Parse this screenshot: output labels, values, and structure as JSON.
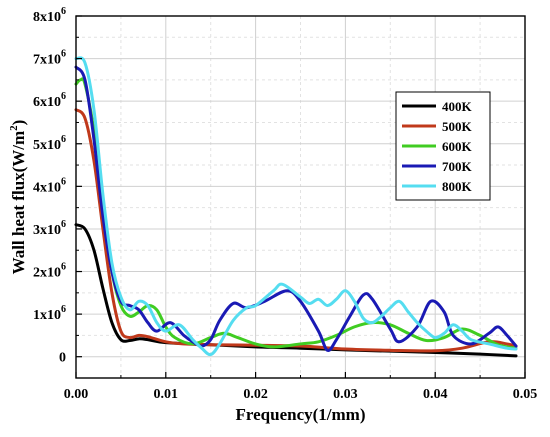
{
  "chart_data": {
    "type": "line",
    "title": "",
    "xlabel": "Frequency(1/mm)",
    "ylabel_prefix": "Wall heat flux(W/m",
    "ylabel_sup": "2",
    "ylabel_suffix": ")",
    "xlim": [
      0,
      0.05
    ],
    "ylim": [
      -500000,
      8000000
    ],
    "grid": true,
    "legend_position": "right",
    "x_ticks": [
      {
        "value": 0,
        "label": "0.00"
      },
      {
        "value": 0.01,
        "label": "0.01"
      },
      {
        "value": 0.02,
        "label": "0.02"
      },
      {
        "value": 0.03,
        "label": "0.03"
      },
      {
        "value": 0.04,
        "label": "0.04"
      },
      {
        "value": 0.05,
        "label": "0.05"
      }
    ],
    "y_ticks": [
      {
        "value": 0,
        "base": "0",
        "exp": ""
      },
      {
        "value": 1000000,
        "base": "1x10",
        "exp": "6"
      },
      {
        "value": 2000000,
        "base": "2x10",
        "exp": "6"
      },
      {
        "value": 3000000,
        "base": "3x10",
        "exp": "6"
      },
      {
        "value": 4000000,
        "base": "4x10",
        "exp": "6"
      },
      {
        "value": 5000000,
        "base": "5x10",
        "exp": "6"
      },
      {
        "value": 6000000,
        "base": "6x10",
        "exp": "6"
      },
      {
        "value": 7000000,
        "base": "7x10",
        "exp": "6"
      },
      {
        "value": 8000000,
        "base": "8x10",
        "exp": "6"
      }
    ],
    "series": [
      {
        "name": "400K",
        "color": "#000000",
        "points": [
          [
            0,
            3100000
          ],
          [
            0.001,
            3000000
          ],
          [
            0.002,
            2500000
          ],
          [
            0.003,
            1600000
          ],
          [
            0.004,
            800000
          ],
          [
            0.005,
            400000
          ],
          [
            0.006,
            380000
          ],
          [
            0.007,
            420000
          ],
          [
            0.008,
            400000
          ],
          [
            0.01,
            330000
          ],
          [
            0.015,
            280000
          ],
          [
            0.02,
            230000
          ],
          [
            0.025,
            200000
          ],
          [
            0.03,
            160000
          ],
          [
            0.035,
            130000
          ],
          [
            0.04,
            100000
          ],
          [
            0.045,
            60000
          ],
          [
            0.049,
            20000
          ]
        ]
      },
      {
        "name": "500K",
        "color": "#c0391b",
        "points": [
          [
            0,
            5800000
          ],
          [
            0.001,
            5600000
          ],
          [
            0.002,
            4600000
          ],
          [
            0.003,
            3000000
          ],
          [
            0.004,
            1500000
          ],
          [
            0.005,
            600000
          ],
          [
            0.006,
            450000
          ],
          [
            0.007,
            500000
          ],
          [
            0.008,
            470000
          ],
          [
            0.01,
            350000
          ],
          [
            0.012,
            300000
          ],
          [
            0.015,
            280000
          ],
          [
            0.02,
            270000
          ],
          [
            0.025,
            250000
          ],
          [
            0.03,
            180000
          ],
          [
            0.035,
            150000
          ],
          [
            0.04,
            140000
          ],
          [
            0.043,
            200000
          ],
          [
            0.046,
            350000
          ],
          [
            0.048,
            300000
          ],
          [
            0.049,
            250000
          ]
        ]
      },
      {
        "name": "600K",
        "color": "#40cc22",
        "points": [
          [
            0,
            6400000
          ],
          [
            0.0005,
            6500000
          ],
          [
            0.001,
            6400000
          ],
          [
            0.002,
            5300000
          ],
          [
            0.003,
            3600000
          ],
          [
            0.004,
            2000000
          ],
          [
            0.005,
            1200000
          ],
          [
            0.006,
            950000
          ],
          [
            0.007,
            1050000
          ],
          [
            0.008,
            1200000
          ],
          [
            0.009,
            1100000
          ],
          [
            0.01,
            700000
          ],
          [
            0.011,
            450000
          ],
          [
            0.013,
            300000
          ],
          [
            0.015,
            450000
          ],
          [
            0.0165,
            550000
          ],
          [
            0.018,
            450000
          ],
          [
            0.02,
            300000
          ],
          [
            0.022,
            230000
          ],
          [
            0.025,
            300000
          ],
          [
            0.027,
            350000
          ],
          [
            0.029,
            500000
          ],
          [
            0.031,
            700000
          ],
          [
            0.033,
            800000
          ],
          [
            0.035,
            750000
          ],
          [
            0.037,
            550000
          ],
          [
            0.039,
            380000
          ],
          [
            0.041,
            450000
          ],
          [
            0.043,
            650000
          ],
          [
            0.045,
            500000
          ],
          [
            0.047,
            280000
          ],
          [
            0.049,
            200000
          ]
        ]
      },
      {
        "name": "700K",
        "color": "#1a1ab4",
        "points": [
          [
            0,
            6800000
          ],
          [
            0.001,
            6500000
          ],
          [
            0.002,
            5100000
          ],
          [
            0.003,
            3300000
          ],
          [
            0.004,
            2000000
          ],
          [
            0.005,
            1300000
          ],
          [
            0.006,
            1200000
          ],
          [
            0.007,
            1100000
          ],
          [
            0.008,
            800000
          ],
          [
            0.009,
            600000
          ],
          [
            0.0105,
            800000
          ],
          [
            0.012,
            500000
          ],
          [
            0.013,
            350000
          ],
          [
            0.014,
            250000
          ],
          [
            0.015,
            400000
          ],
          [
            0.016,
            850000
          ],
          [
            0.0175,
            1250000
          ],
          [
            0.019,
            1150000
          ],
          [
            0.021,
            1300000
          ],
          [
            0.0235,
            1550000
          ],
          [
            0.025,
            1300000
          ],
          [
            0.027,
            600000
          ],
          [
            0.028,
            150000
          ],
          [
            0.029,
            400000
          ],
          [
            0.0305,
            950000
          ],
          [
            0.032,
            1450000
          ],
          [
            0.033,
            1350000
          ],
          [
            0.035,
            650000
          ],
          [
            0.036,
            350000
          ],
          [
            0.038,
            700000
          ],
          [
            0.0395,
            1300000
          ],
          [
            0.041,
            1050000
          ],
          [
            0.042,
            500000
          ],
          [
            0.044,
            300000
          ],
          [
            0.046,
            550000
          ],
          [
            0.047,
            700000
          ],
          [
            0.048,
            500000
          ],
          [
            0.049,
            250000
          ]
        ]
      },
      {
        "name": "800K",
        "color": "#55ddf0",
        "points": [
          [
            0,
            7000000
          ],
          [
            0.001,
            6900000
          ],
          [
            0.002,
            5800000
          ],
          [
            0.003,
            3800000
          ],
          [
            0.004,
            2200000
          ],
          [
            0.005,
            1400000
          ],
          [
            0.006,
            1100000
          ],
          [
            0.007,
            1300000
          ],
          [
            0.008,
            1200000
          ],
          [
            0.009,
            800000
          ],
          [
            0.01,
            600000
          ],
          [
            0.0115,
            750000
          ],
          [
            0.013,
            400000
          ],
          [
            0.014,
            200000
          ],
          [
            0.015,
            50000
          ],
          [
            0.016,
            300000
          ],
          [
            0.0175,
            850000
          ],
          [
            0.019,
            1150000
          ],
          [
            0.02,
            1200000
          ],
          [
            0.022,
            1550000
          ],
          [
            0.023,
            1700000
          ],
          [
            0.025,
            1400000
          ],
          [
            0.026,
            1250000
          ],
          [
            0.027,
            1350000
          ],
          [
            0.028,
            1200000
          ],
          [
            0.029,
            1350000
          ],
          [
            0.03,
            1550000
          ],
          [
            0.031,
            1300000
          ],
          [
            0.032,
            900000
          ],
          [
            0.033,
            800000
          ],
          [
            0.034,
            950000
          ],
          [
            0.035,
            1150000
          ],
          [
            0.036,
            1300000
          ],
          [
            0.037,
            1050000
          ],
          [
            0.038,
            800000
          ],
          [
            0.039,
            600000
          ],
          [
            0.04,
            450000
          ],
          [
            0.041,
            550000
          ],
          [
            0.042,
            750000
          ],
          [
            0.043,
            600000
          ],
          [
            0.044,
            400000
          ],
          [
            0.046,
            300000
          ],
          [
            0.048,
            200000
          ],
          [
            0.049,
            180000
          ]
        ]
      }
    ]
  }
}
